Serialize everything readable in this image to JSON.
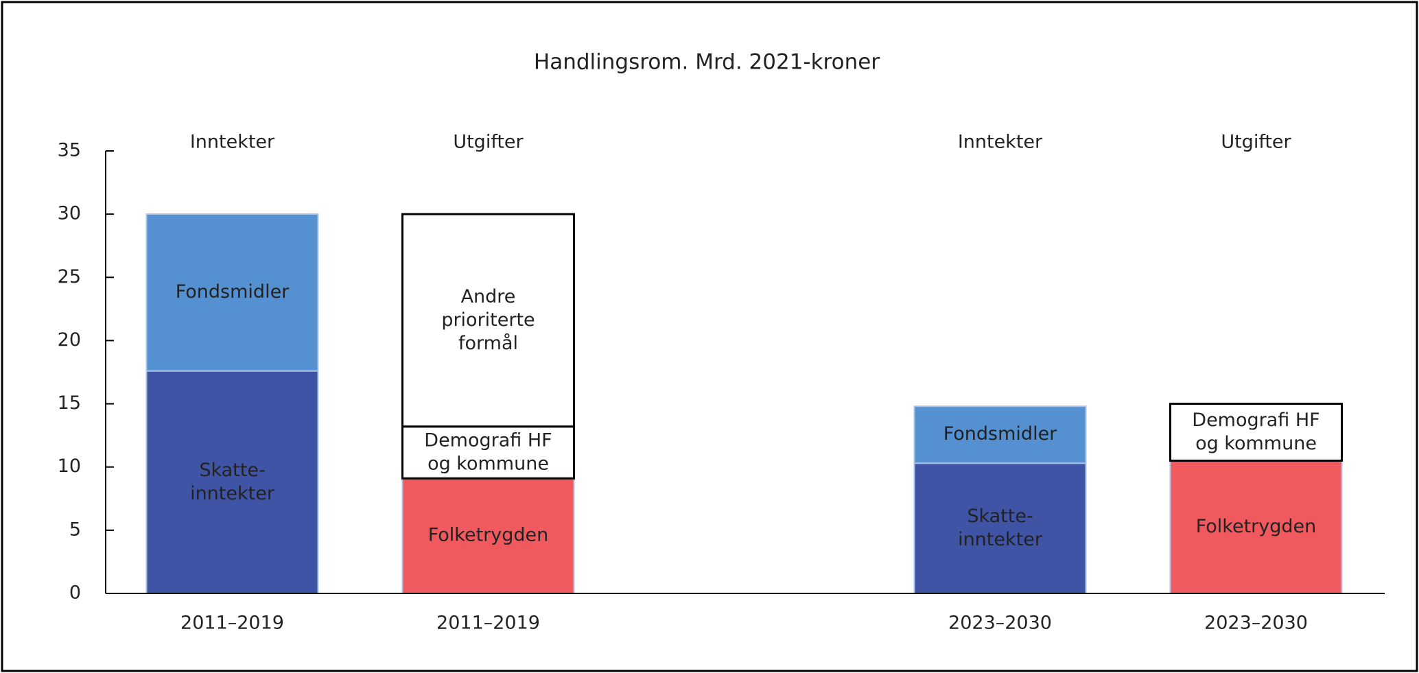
{
  "chart_data": {
    "type": "stacked_bar",
    "title": "Handlingsrom. Mrd. 2021-kroner",
    "categories": [
      "2011–2019",
      "2011–2019",
      null,
      "2023–2030",
      "2023–2030"
    ],
    "bar_headers": [
      "Inntekter",
      "Utgifter",
      null,
      "Inntekter",
      "Utgifter"
    ],
    "series": [
      {
        "name": "Skatte-\ninntekter",
        "color": "#3f54a5",
        "values": [
          17.6,
          null,
          null,
          10.3,
          null
        ]
      },
      {
        "name": "Fondsmidler",
        "color": "#5590d0",
        "values": [
          12.4,
          null,
          null,
          4.5,
          null
        ]
      },
      {
        "name": "Folketrygden",
        "color": "#f05a5f",
        "values": [
          null,
          9.1,
          null,
          null,
          10.5
        ]
      },
      {
        "name": "Demografi HF\nog kommune",
        "color": "#ffffff",
        "values": [
          null,
          4.1,
          null,
          null,
          4.5
        ]
      },
      {
        "name": "Andre\nprioriterte\nformål",
        "color": "#ffffff",
        "values": [
          null,
          16.8,
          null,
          null,
          null
        ]
      }
    ],
    "ylim": [
      0,
      35
    ],
    "yticks": [
      0,
      5,
      10,
      15,
      20,
      25,
      30,
      35
    ]
  }
}
